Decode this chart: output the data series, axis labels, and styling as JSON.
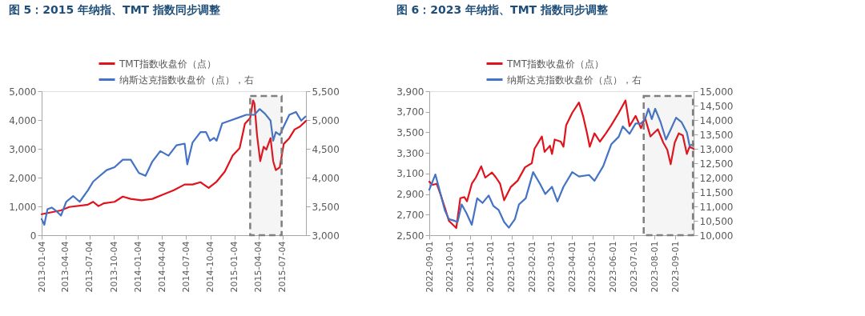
{
  "chart_data": [
    {
      "type": "line",
      "title": "图 5：2015 年纳指、TMT 指数同步调整",
      "legend": "top",
      "grid": false,
      "xlim": [
        "2013-01-04",
        "2015-10-01"
      ],
      "xticks": [
        "2013-01-04",
        "2013-04-04",
        "2013-07-04",
        "2013-10-04",
        "2014-01-04",
        "2014-04-04",
        "2014-07-04",
        "2014-10-04",
        "2015-01-04",
        "2015-04-04",
        "2015-07-04"
      ],
      "ylim": [
        0,
        5000
      ],
      "yticks": [
        0,
        {
          "value": 1000,
          "label": "1,000"
        },
        {
          "value": 2000,
          "label": "2,000"
        },
        {
          "value": 3000,
          "label": "3,000"
        },
        {
          "value": 4000,
          "label": "4,000"
        },
        {
          "value": 5000,
          "label": "5,000"
        }
      ],
      "y2lim": [
        3000,
        5500
      ],
      "y2ticks": [
        {
          "value": 3000,
          "label": "3,000"
        },
        {
          "value": 3500,
          "label": "3,500"
        },
        {
          "value": 4000,
          "label": "4,000"
        },
        {
          "value": 4500,
          "label": "4,500"
        },
        {
          "value": 5000,
          "label": "5,000"
        },
        {
          "value": 5500,
          "label": "5,500"
        }
      ],
      "bands": [
        {
          "axis": "x",
          "from": "2015-03-04",
          "to": "2015-07-01",
          "color": "#7f7f7f"
        }
      ],
      "series": [
        {
          "name": "TMT指数收盘价（点）",
          "color": "#e0131c",
          "x": [
            "2013-01-04",
            "2013-03-18",
            "2013-04-18",
            "2013-06-28",
            "2013-07-18",
            "2013-08-07",
            "2013-08-28",
            "2013-10-07",
            "2013-11-07",
            "2013-12-07",
            "2014-01-17",
            "2014-02-27",
            "2014-04-08",
            "2014-05-19",
            "2014-06-29",
            "2014-07-29",
            "2014-08-28",
            "2014-09-28",
            "2014-10-28",
            "2014-11-28",
            "2014-12-28",
            "2015-01-23",
            "2015-02-12",
            "2015-03-04",
            "2015-03-15",
            "2015-03-20",
            "2015-03-30",
            "2015-04-11",
            "2015-04-24",
            "2015-05-04",
            "2015-05-20",
            "2015-05-30",
            "2015-06-09",
            "2015-06-24",
            "2015-07-09",
            "2015-07-30",
            "2015-08-19",
            "2015-09-08",
            "2015-10-01"
          ],
          "values": [
            730,
            860,
            980,
            1060,
            1160,
            1010,
            1110,
            1160,
            1340,
            1260,
            1210,
            1260,
            1410,
            1560,
            1760,
            1760,
            1840,
            1640,
            1860,
            2210,
            2770,
            3020,
            3870,
            4070,
            4680,
            4580,
            3470,
            2570,
            3070,
            2970,
            3370,
            2570,
            2260,
            2360,
            3170,
            3370,
            3670,
            3770,
            3970
          ]
        },
        {
          "name": "纳斯达克指数收盘价（点），右",
          "color": "#4472c4",
          "axis": "y2",
          "x": [
            "2013-01-04",
            "2013-01-14",
            "2013-01-26",
            "2013-02-11",
            "2013-02-26",
            "2013-03-18",
            "2013-04-07",
            "2013-05-03",
            "2013-05-28",
            "2013-06-28",
            "2013-07-18",
            "2013-08-07",
            "2013-09-07",
            "2013-10-07",
            "2013-11-07",
            "2013-12-07",
            "2014-01-07",
            "2014-02-01",
            "2014-02-27",
            "2014-03-29",
            "2014-04-29",
            "2014-05-29",
            "2014-06-29",
            "2014-07-09",
            "2014-07-29",
            "2014-08-28",
            "2014-09-18",
            "2014-10-03",
            "2014-10-18",
            "2014-10-28",
            "2014-11-18",
            "2014-12-18",
            "2015-01-18",
            "2015-02-17",
            "2015-03-20",
            "2015-04-09",
            "2015-04-29",
            "2015-05-20",
            "2015-05-30",
            "2015-06-09",
            "2015-06-24",
            "2015-07-09",
            "2015-07-30",
            "2015-08-24",
            "2015-09-13",
            "2015-09-29"
          ],
          "values": [
            3280,
            3180,
            3450,
            3480,
            3430,
            3340,
            3580,
            3680,
            3580,
            3780,
            3930,
            4010,
            4130,
            4180,
            4310,
            4310,
            4080,
            4030,
            4280,
            4460,
            4380,
            4560,
            4590,
            4230,
            4610,
            4790,
            4790,
            4640,
            4690,
            4640,
            4940,
            4990,
            5040,
            5090,
            5090,
            5190,
            5110,
            4990,
            4640,
            4790,
            4740,
            4890,
            5090,
            5140,
            4990,
            5060
          ]
        }
      ]
    },
    {
      "type": "line",
      "title": "图 6：2023 年纳指、TMT 指数同步调整",
      "legend": "top",
      "grid": false,
      "xlim": [
        "2022-09-01",
        "2023-09-28"
      ],
      "xticks": [
        "2022-09-01",
        "2022-10-01",
        "2022-11-01",
        "2022-12-01",
        "2023-01-01",
        "2023-02-01",
        "2023-03-01",
        "2023-04-01",
        "2023-05-01",
        "2023-06-01",
        "2023-07-01",
        "2023-08-01",
        "2023-09-01"
      ],
      "ylim": [
        2500,
        3900
      ],
      "yticks": [
        {
          "value": 2500,
          "label": "2,500"
        },
        {
          "value": 2700,
          "label": "2,700"
        },
        {
          "value": 2900,
          "label": "2,900"
        },
        {
          "value": 3100,
          "label": "3,100"
        },
        {
          "value": 3300,
          "label": "3,300"
        },
        {
          "value": 3500,
          "label": "3,500"
        },
        {
          "value": 3700,
          "label": "3,700"
        },
        {
          "value": 3900,
          "label": "3,900"
        }
      ],
      "y2lim": [
        10000,
        15000
      ],
      "y2ticks": [
        {
          "value": 10000,
          "label": "10,000"
        },
        {
          "value": 10500,
          "label": "10,500"
        },
        {
          "value": 11000,
          "label": "11,000"
        },
        {
          "value": 11500,
          "label": "11,500"
        },
        {
          "value": 12000,
          "label": "12,000"
        },
        {
          "value": 12500,
          "label": "12,500"
        },
        {
          "value": 13000,
          "label": "13,000"
        },
        {
          "value": 13500,
          "label": "13,500"
        },
        {
          "value": 14000,
          "label": "14,000"
        },
        {
          "value": 14500,
          "label": "14,500"
        },
        {
          "value": 15000,
          "label": "15,000"
        }
      ],
      "bands": [
        {
          "axis": "x",
          "from": "2023-07-16",
          "to": "2023-09-27",
          "color": "#7f7f7f"
        }
      ],
      "series": [
        {
          "name": "TMT指数收盘价（点）",
          "color": "#e0131c",
          "x": [
            "2022-09-01",
            "2022-09-06",
            "2022-09-12",
            "2022-09-18",
            "2022-09-24",
            "2022-09-30",
            "2022-10-11",
            "2022-10-17",
            "2022-10-23",
            "2022-10-27",
            "2022-11-03",
            "2022-11-09",
            "2022-11-17",
            "2022-11-23",
            "2022-12-03",
            "2022-12-09",
            "2022-12-15",
            "2022-12-21",
            "2022-12-31",
            "2023-01-10",
            "2023-01-21",
            "2023-01-31",
            "2023-02-04",
            "2023-02-15",
            "2023-02-19",
            "2023-02-27",
            "2023-03-02",
            "2023-03-06",
            "2023-03-15",
            "2023-03-19",
            "2023-03-23",
            "2023-04-01",
            "2023-04-11",
            "2023-04-17",
            "2023-04-23",
            "2023-04-27",
            "2023-05-04",
            "2023-05-12",
            "2023-05-21",
            "2023-05-29",
            "2023-06-09",
            "2023-06-19",
            "2023-06-25",
            "2023-07-04",
            "2023-07-12",
            "2023-07-18",
            "2023-07-26",
            "2023-08-06",
            "2023-08-14",
            "2023-08-20",
            "2023-08-25",
            "2023-08-31",
            "2023-09-06",
            "2023-09-12",
            "2023-09-18",
            "2023-09-22",
            "2023-09-28"
          ],
          "values": [
            3020,
            2990,
            3000,
            2890,
            2770,
            2640,
            2570,
            2860,
            2870,
            2830,
            3000,
            3060,
            3170,
            3060,
            3110,
            3060,
            3000,
            2840,
            2970,
            3030,
            3160,
            3200,
            3340,
            3460,
            3310,
            3370,
            3290,
            3430,
            3410,
            3360,
            3570,
            3690,
            3790,
            3660,
            3490,
            3360,
            3490,
            3410,
            3490,
            3570,
            3690,
            3810,
            3560,
            3660,
            3540,
            3640,
            3460,
            3530,
            3400,
            3330,
            3190,
            3400,
            3490,
            3470,
            3290,
            3360,
            3340
          ]
        },
        {
          "name": "纳斯达克指数收盘价（点），右",
          "color": "#4472c4",
          "axis": "y2",
          "x": [
            "2022-09-01",
            "2022-09-10",
            "2022-09-16",
            "2022-09-24",
            "2022-09-30",
            "2022-10-07",
            "2022-10-13",
            "2022-10-19",
            "2022-10-26",
            "2022-11-03",
            "2022-11-11",
            "2022-11-19",
            "2022-11-28",
            "2022-12-05",
            "2022-12-13",
            "2022-12-21",
            "2022-12-28",
            "2023-01-06",
            "2023-01-12",
            "2023-01-22",
            "2023-02-02",
            "2023-02-12",
            "2023-02-20",
            "2023-03-02",
            "2023-03-10",
            "2023-03-19",
            "2023-04-01",
            "2023-04-11",
            "2023-04-26",
            "2023-05-04",
            "2023-05-17",
            "2023-05-29",
            "2023-06-09",
            "2023-06-15",
            "2023-06-25",
            "2023-07-04",
            "2023-07-12",
            "2023-07-18",
            "2023-07-23",
            "2023-07-28",
            "2023-08-02",
            "2023-08-10",
            "2023-08-18",
            "2023-08-24",
            "2023-09-02",
            "2023-09-10",
            "2023-09-18",
            "2023-09-22",
            "2023-09-28"
          ],
          "values": [
            11580,
            12110,
            11580,
            10870,
            10560,
            10510,
            10460,
            11070,
            10770,
            10360,
            11280,
            11120,
            11380,
            11020,
            10870,
            10460,
            10260,
            10560,
            11070,
            11280,
            12190,
            11790,
            11430,
            11680,
            11170,
            11680,
            12190,
            12040,
            12090,
            11890,
            12400,
            13160,
            13420,
            13780,
            13520,
            13880,
            13880,
            14030,
            14390,
            14030,
            14390,
            13930,
            13320,
            13620,
            14080,
            13930,
            13570,
            13110,
            13160
          ]
        }
      ]
    }
  ]
}
